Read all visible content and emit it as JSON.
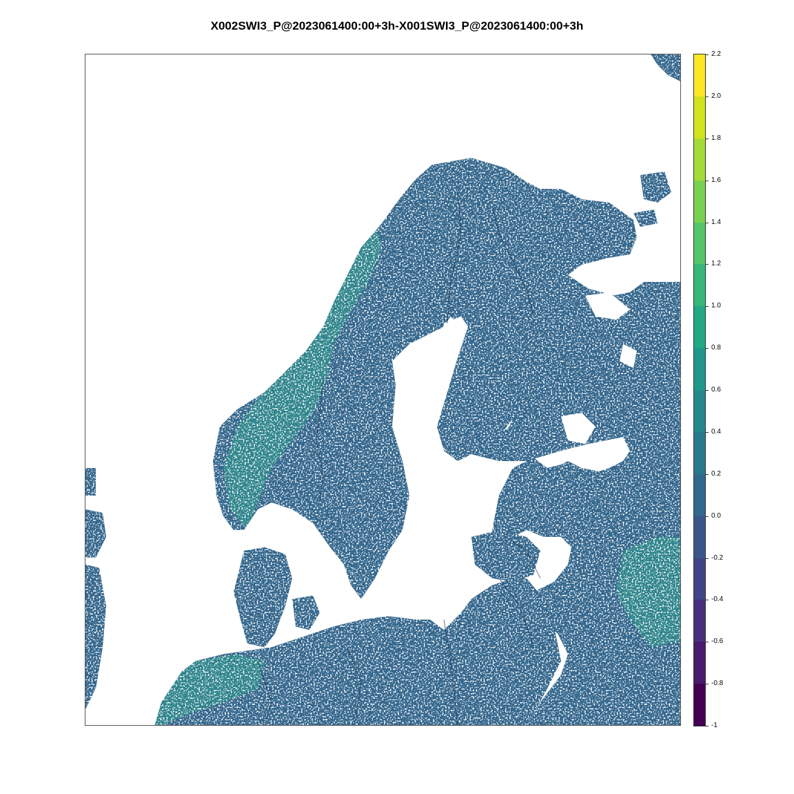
{
  "title": "X002SWI3_P@2023061400:00+3h-X001SWI3_P@2023061400:00+3h",
  "map": {
    "land_color": "#33668c",
    "green_color": "#2a9c8a",
    "sea_color": "#ffffff",
    "border_color": "#1a2a40"
  },
  "colorbar": {
    "min": -1,
    "max": 2.2,
    "segments": [
      {
        "from": -1.0,
        "to": -0.8,
        "color": "#440154"
      },
      {
        "from": -0.8,
        "to": -0.6,
        "color": "#481a6c"
      },
      {
        "from": -0.6,
        "to": -0.4,
        "color": "#472f7d"
      },
      {
        "from": -0.4,
        "to": -0.2,
        "color": "#414487"
      },
      {
        "from": -0.2,
        "to": 0.0,
        "color": "#39568c"
      },
      {
        "from": 0.0,
        "to": 0.2,
        "color": "#31688e"
      },
      {
        "from": 0.2,
        "to": 0.4,
        "color": "#2a788e"
      },
      {
        "from": 0.4,
        "to": 0.6,
        "color": "#23888e"
      },
      {
        "from": 0.6,
        "to": 0.8,
        "color": "#1f988b"
      },
      {
        "from": 0.8,
        "to": 1.0,
        "color": "#22a884"
      },
      {
        "from": 1.0,
        "to": 1.2,
        "color": "#35b779"
      },
      {
        "from": 1.2,
        "to": 1.4,
        "color": "#54c568"
      },
      {
        "from": 1.4,
        "to": 1.6,
        "color": "#7ad151"
      },
      {
        "from": 1.6,
        "to": 1.8,
        "color": "#a5db36"
      },
      {
        "from": 1.8,
        "to": 2.0,
        "color": "#d2e21b"
      },
      {
        "from": 2.0,
        "to": 2.2,
        "color": "#fde725"
      }
    ],
    "labels": [
      "2.2",
      "2.0",
      "1.8",
      "1.6",
      "1.4",
      "1.2",
      "1.0",
      "0.8",
      "0.6",
      "0.4",
      "0.2",
      "0.0",
      "-0.2",
      "-0.4",
      "-0.6",
      "-0.8",
      "-1"
    ]
  }
}
